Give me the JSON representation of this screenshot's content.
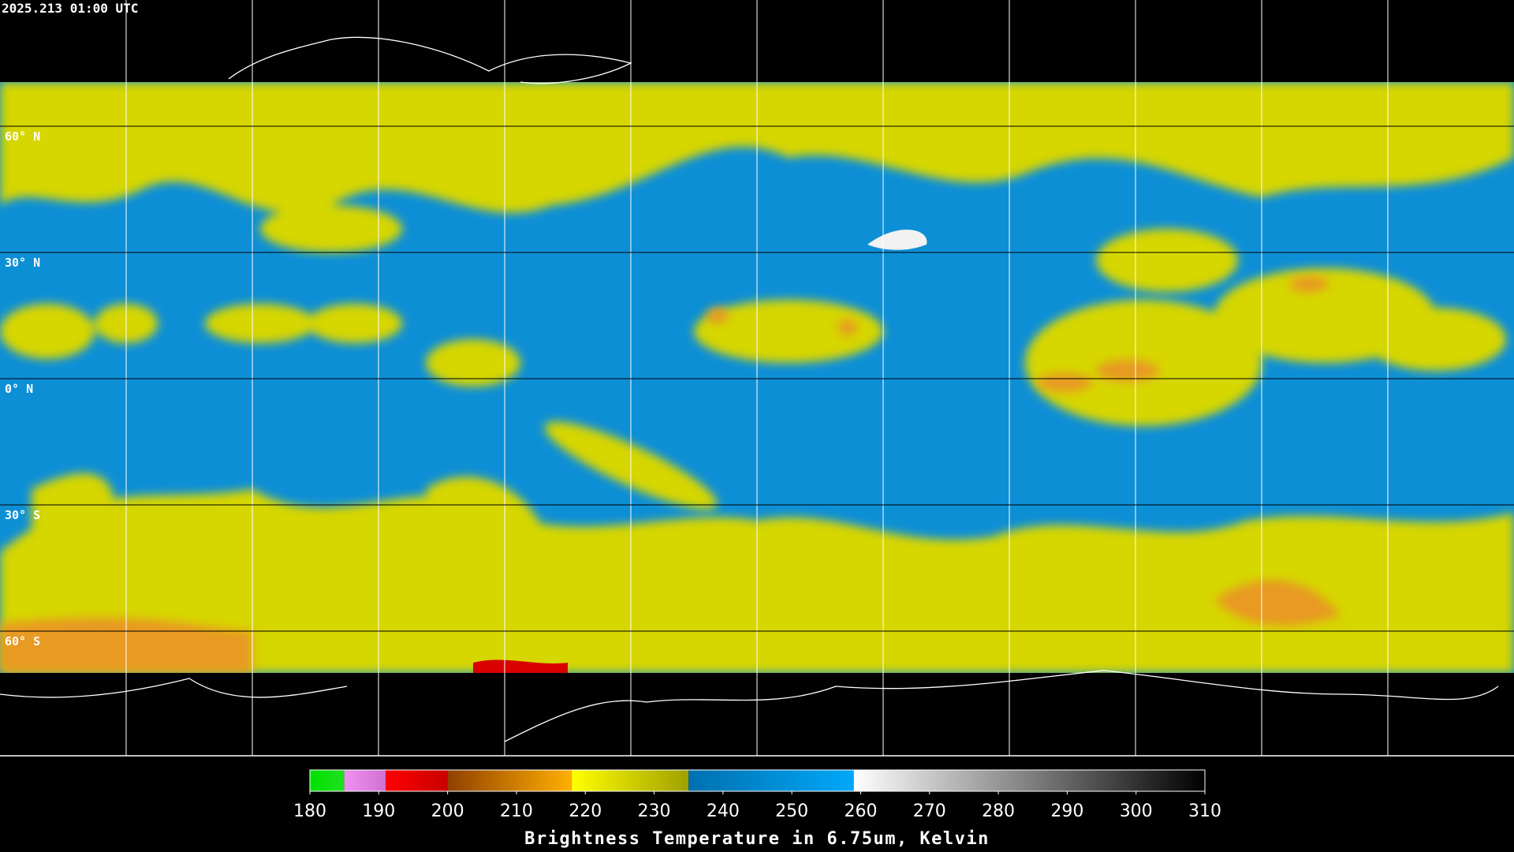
{
  "map": {
    "timestamp": "2025.213 01:00 UTC",
    "lat_labels": [
      "60° N",
      "30° N",
      "0° N",
      "30° S",
      "60° S"
    ]
  },
  "colorbar": {
    "lim": [
      180,
      310
    ],
    "ticks": [
      180,
      190,
      200,
      210,
      220,
      230,
      240,
      250,
      260,
      270,
      280,
      290,
      300,
      310
    ],
    "segments": [
      {
        "from": 180,
        "to": 185,
        "colors": [
          "#00e000",
          "#20e020"
        ]
      },
      {
        "from": 185,
        "to": 191,
        "colors": [
          "#f090f0",
          "#d070d0"
        ]
      },
      {
        "from": 191,
        "to": 200,
        "colors": [
          "#ff0000",
          "#c80000"
        ]
      },
      {
        "from": 200,
        "to": 218,
        "colors": [
          "#904000",
          "#ffb000"
        ]
      },
      {
        "from": 218,
        "to": 235,
        "colors": [
          "#ffff00",
          "#a0a000"
        ]
      },
      {
        "from": 235,
        "to": 259,
        "colors": [
          "#0070b0",
          "#00a8f8"
        ]
      },
      {
        "from": 259,
        "to": 310,
        "colors": [
          "#ffffff",
          "#000000"
        ]
      }
    ],
    "label": "Brightness Temperature in 6.75um, Kelvin"
  }
}
